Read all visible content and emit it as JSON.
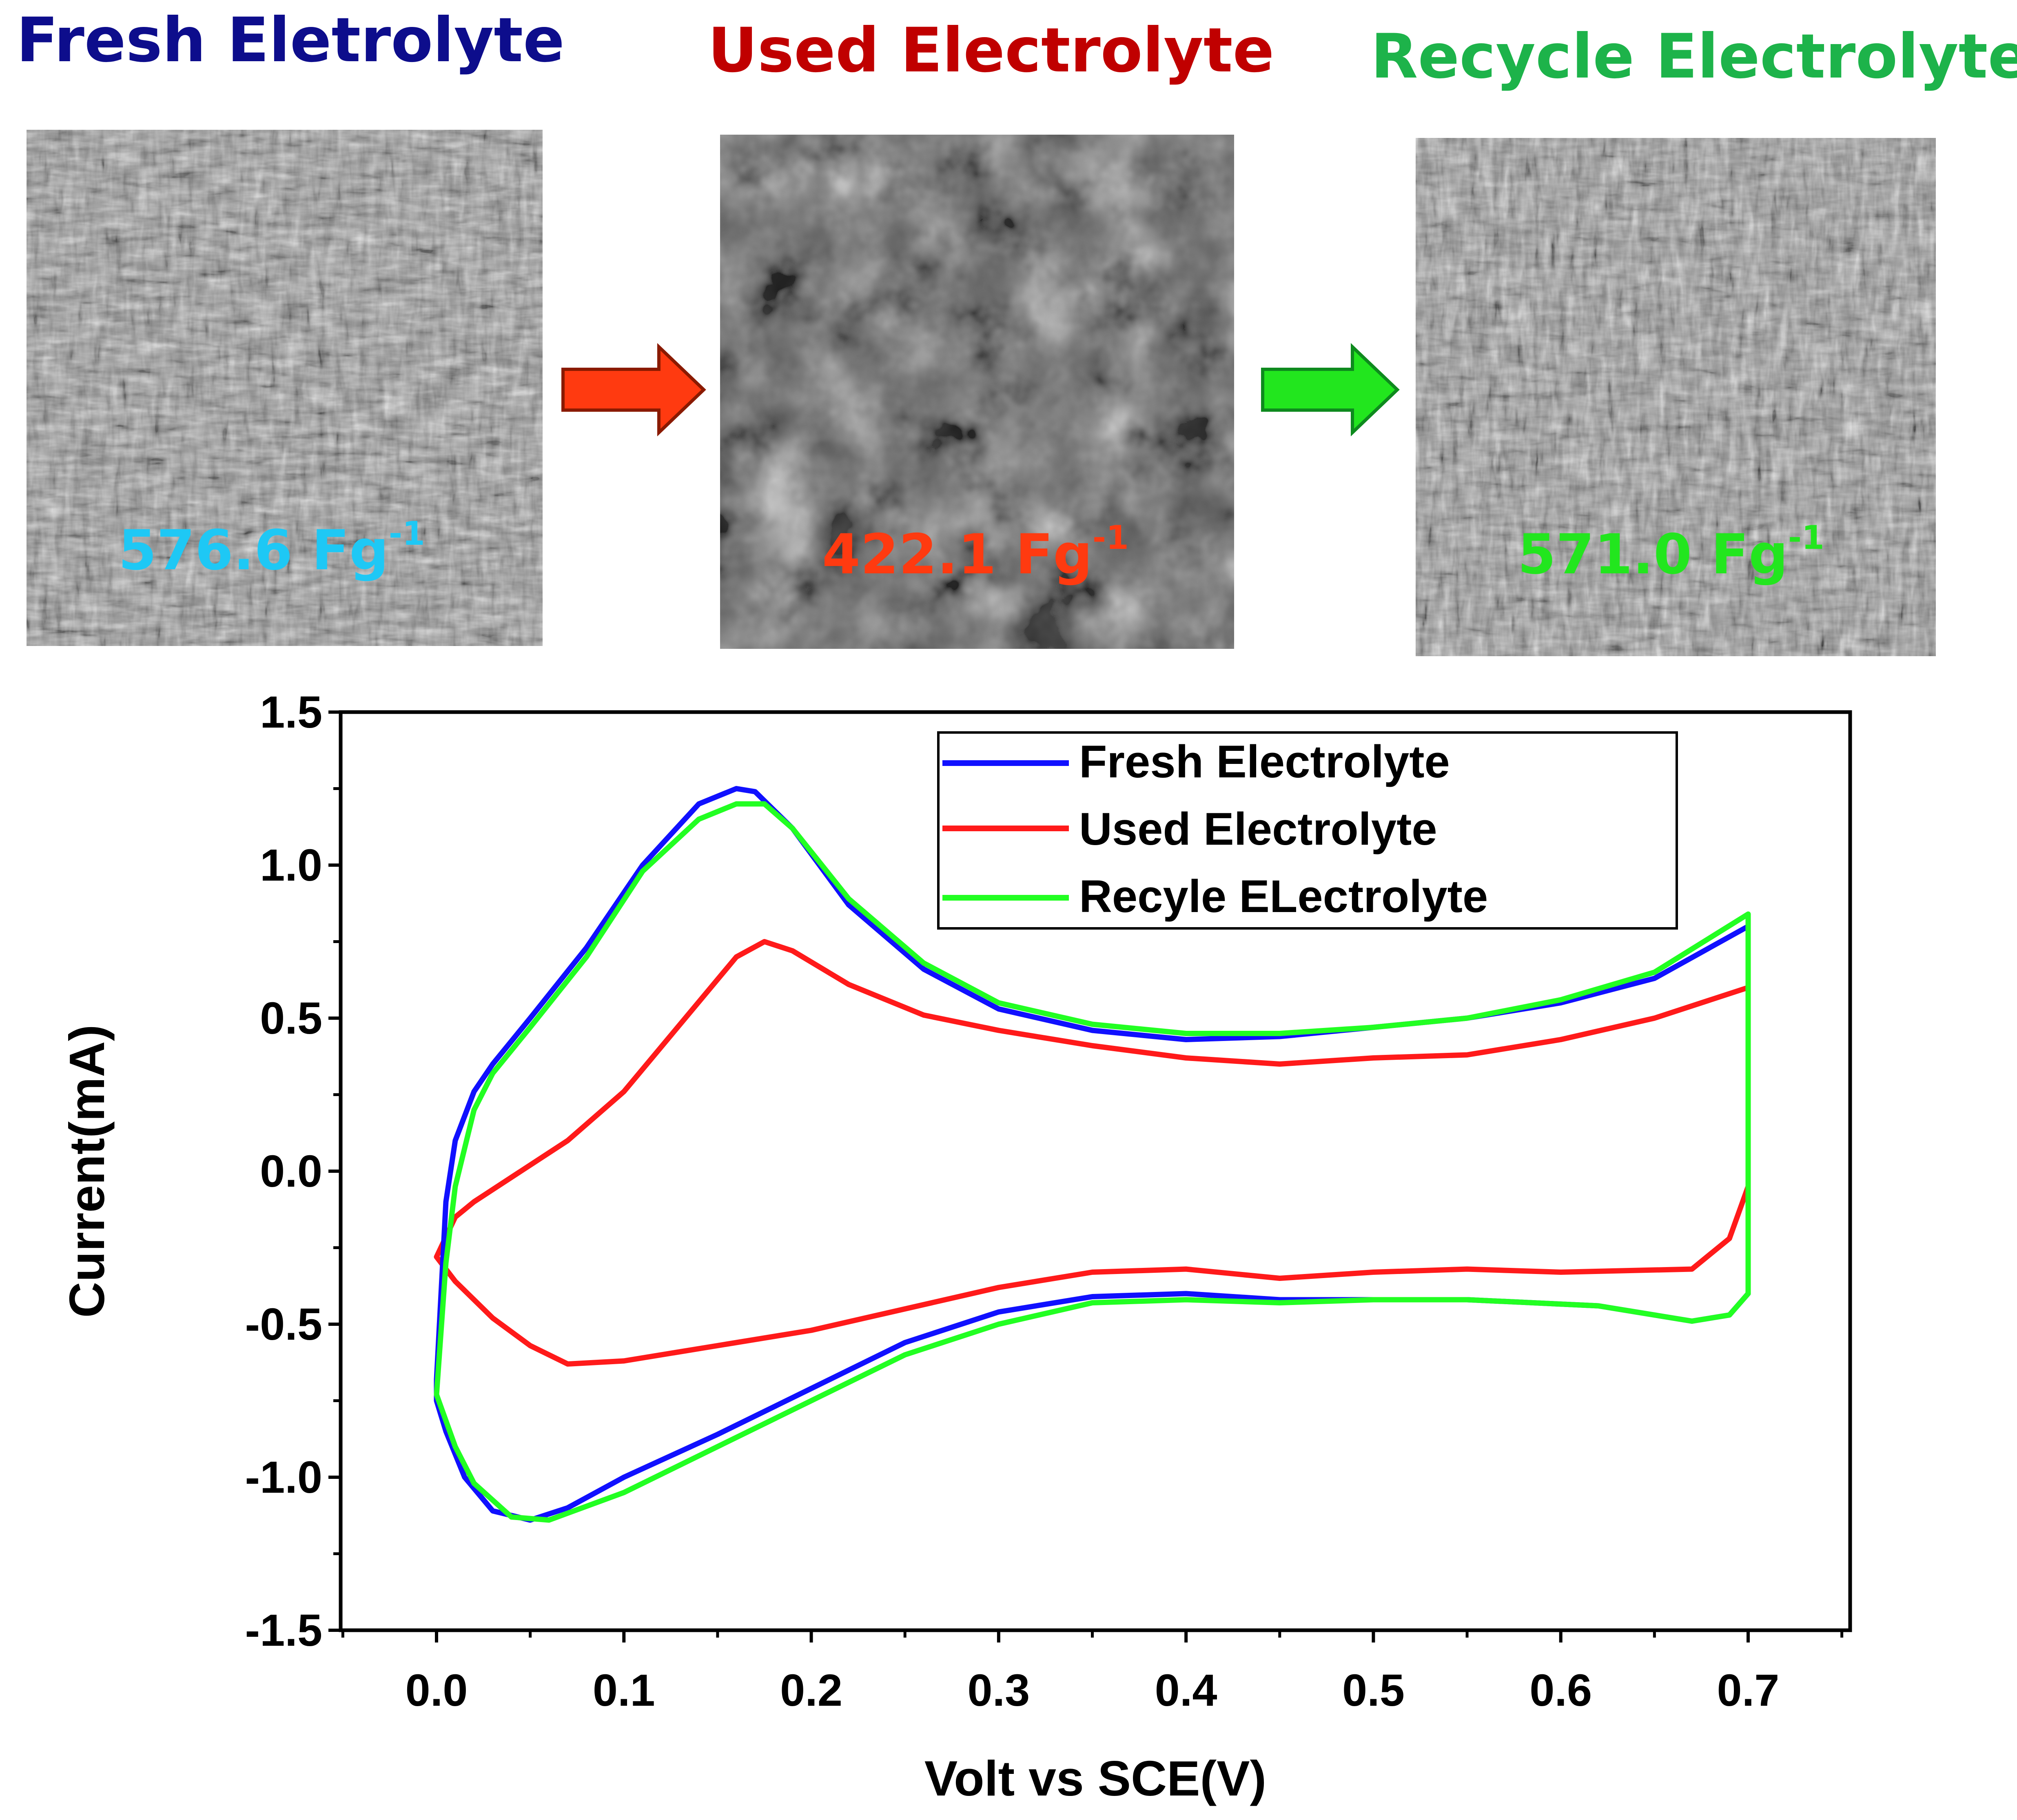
{
  "panels": [
    {
      "title": "Fresh Eletrolyte",
      "title_color": "#0d0d8c",
      "capacitance": "576.6 Fg",
      "capacitance_sup": "-1",
      "cap_color": "#1ec8f5"
    },
    {
      "title": "Used Electrolyte",
      "title_color": "#c00000",
      "capacitance": "422.1 Fg",
      "capacitance_sup": "-1",
      "cap_color": "#ff3a10"
    },
    {
      "title": "Recycle Electrolyte",
      "title_color": "#1db34a",
      "capacitance": "571.0 Fg",
      "capacitance_sup": "-1",
      "cap_color": "#22e61e"
    }
  ],
  "arrows": [
    {
      "color": "#ff3a10"
    },
    {
      "color": "#22e61e"
    }
  ],
  "chart_data": {
    "type": "line",
    "xlabel": "Volt vs SCE(V)",
    "ylabel": "Current(mA)",
    "xlim": [
      -0.05,
      0.75
    ],
    "ylim": [
      -1.5,
      1.5
    ],
    "xticks": [
      "0.0",
      "0.1",
      "0.2",
      "0.3",
      "0.4",
      "0.5",
      "0.6",
      "0.7"
    ],
    "yticks": [
      "1.5",
      "1.0",
      "0.5",
      "0.0",
      "-0.5",
      "-1.0",
      "-1.5"
    ],
    "grid": false,
    "legend_position": "top-right",
    "series": [
      {
        "name": "Fresh Electrolyte",
        "color": "#1010ff",
        "x": [
          0.0,
          0.005,
          0.01,
          0.02,
          0.03,
          0.05,
          0.08,
          0.11,
          0.14,
          0.16,
          0.17,
          0.19,
          0.22,
          0.26,
          0.3,
          0.35,
          0.4,
          0.45,
          0.5,
          0.55,
          0.6,
          0.65,
          0.7,
          0.7,
          0.7,
          0.69,
          0.67,
          0.62,
          0.55,
          0.5,
          0.45,
          0.4,
          0.35,
          0.3,
          0.25,
          0.2,
          0.15,
          0.1,
          0.07,
          0.05,
          0.03,
          0.015,
          0.005,
          0.0,
          0.0
        ],
        "y": [
          -0.68,
          -0.1,
          0.1,
          0.26,
          0.35,
          0.5,
          0.73,
          1.0,
          1.2,
          1.25,
          1.24,
          1.12,
          0.87,
          0.66,
          0.53,
          0.46,
          0.43,
          0.44,
          0.47,
          0.5,
          0.55,
          0.63,
          0.8,
          0.0,
          -0.4,
          -0.47,
          -0.49,
          -0.44,
          -0.42,
          -0.42,
          -0.42,
          -0.4,
          -0.41,
          -0.46,
          -0.56,
          -0.71,
          -0.86,
          -1.0,
          -1.1,
          -1.14,
          -1.11,
          -1.0,
          -0.85,
          -0.75,
          -0.68
        ]
      },
      {
        "name": "Used Electrolyte",
        "color": "#ff1a1a",
        "x": [
          0.0,
          0.01,
          0.02,
          0.04,
          0.07,
          0.1,
          0.13,
          0.16,
          0.175,
          0.19,
          0.22,
          0.26,
          0.3,
          0.35,
          0.4,
          0.45,
          0.5,
          0.55,
          0.6,
          0.65,
          0.7,
          0.7,
          0.69,
          0.67,
          0.6,
          0.55,
          0.5,
          0.45,
          0.4,
          0.35,
          0.3,
          0.2,
          0.15,
          0.1,
          0.07,
          0.05,
          0.03,
          0.01,
          0.0
        ],
        "y": [
          -0.28,
          -0.15,
          -0.1,
          -0.02,
          0.1,
          0.26,
          0.48,
          0.7,
          0.75,
          0.72,
          0.61,
          0.51,
          0.46,
          0.41,
          0.37,
          0.35,
          0.37,
          0.38,
          0.43,
          0.5,
          0.6,
          -0.05,
          -0.22,
          -0.32,
          -0.33,
          -0.32,
          -0.33,
          -0.35,
          -0.32,
          -0.33,
          -0.38,
          -0.52,
          -0.57,
          -0.62,
          -0.63,
          -0.57,
          -0.48,
          -0.36,
          -0.28
        ]
      },
      {
        "name": "Recyle ELectrolyte",
        "color": "#22ff22",
        "x": [
          0.005,
          0.01,
          0.02,
          0.03,
          0.05,
          0.08,
          0.11,
          0.14,
          0.16,
          0.175,
          0.19,
          0.22,
          0.26,
          0.3,
          0.35,
          0.4,
          0.45,
          0.5,
          0.55,
          0.6,
          0.65,
          0.7,
          0.7,
          0.7,
          0.69,
          0.67,
          0.62,
          0.55,
          0.5,
          0.45,
          0.4,
          0.35,
          0.3,
          0.25,
          0.2,
          0.15,
          0.1,
          0.06,
          0.04,
          0.02,
          0.01,
          0.0,
          0.005
        ],
        "y": [
          -0.3,
          -0.05,
          0.2,
          0.32,
          0.47,
          0.7,
          0.98,
          1.15,
          1.2,
          1.2,
          1.12,
          0.89,
          0.68,
          0.55,
          0.48,
          0.45,
          0.45,
          0.47,
          0.5,
          0.56,
          0.65,
          0.84,
          0.0,
          -0.4,
          -0.47,
          -0.49,
          -0.44,
          -0.42,
          -0.42,
          -0.43,
          -0.42,
          -0.43,
          -0.5,
          -0.6,
          -0.75,
          -0.9,
          -1.05,
          -1.14,
          -1.13,
          -1.02,
          -0.9,
          -0.73,
          -0.3
        ]
      }
    ]
  }
}
